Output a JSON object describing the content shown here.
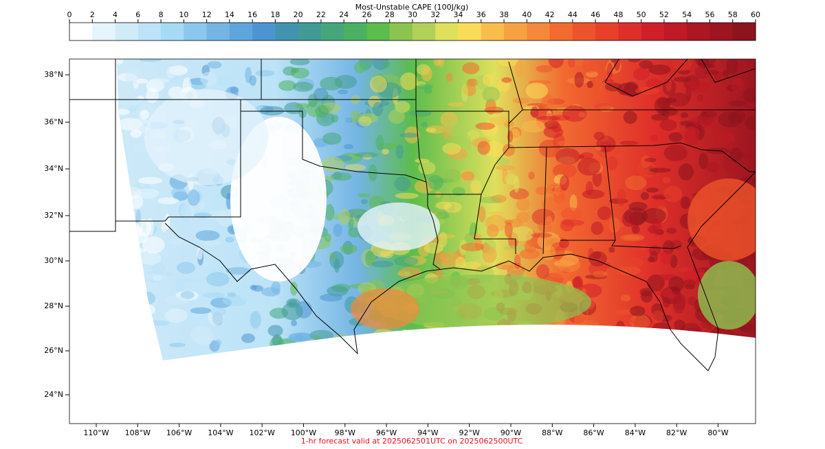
{
  "colorbar": {
    "title": "Most-Unstable CAPE (100J/kg)",
    "ticks": [
      0,
      2,
      4,
      6,
      8,
      10,
      12,
      14,
      16,
      18,
      20,
      22,
      24,
      26,
      28,
      30,
      32,
      34,
      36,
      38,
      40,
      42,
      44,
      46,
      48,
      50,
      52,
      54,
      56,
      58,
      60
    ],
    "colors": [
      "#ffffff",
      "#e6f4fc",
      "#d2ebf9",
      "#bce3f7",
      "#a6daf5",
      "#8cc8ee",
      "#74b5e4",
      "#5ea5dc",
      "#4d95d2",
      "#4393b0",
      "#429a96",
      "#45a67c",
      "#4cb063",
      "#5cbc4c",
      "#8cc451",
      "#b0d05a",
      "#dfe05c",
      "#fbdc58",
      "#f8bd4a",
      "#f6a243",
      "#f5883a",
      "#f26a30",
      "#ee542b",
      "#e8412a",
      "#df2f2a",
      "#d11f2a",
      "#bf1a25",
      "#ac1722",
      "#9c1520",
      "#8c141d"
    ]
  },
  "map": {
    "lat_labels": [
      "38°N",
      "36°N",
      "34°N",
      "32°N",
      "30°N",
      "28°N",
      "26°N",
      "24°N"
    ],
    "lon_labels": [
      "110°W",
      "108°W",
      "106°W",
      "104°W",
      "102°W",
      "100°W",
      "98°W",
      "96°W",
      "94°W",
      "92°W",
      "90°W",
      "88°W",
      "86°W",
      "84°W",
      "82°W",
      "80°W"
    ]
  },
  "footer": "1-hr forecast valid at 2025062501UTC on 2025062500UTC"
}
